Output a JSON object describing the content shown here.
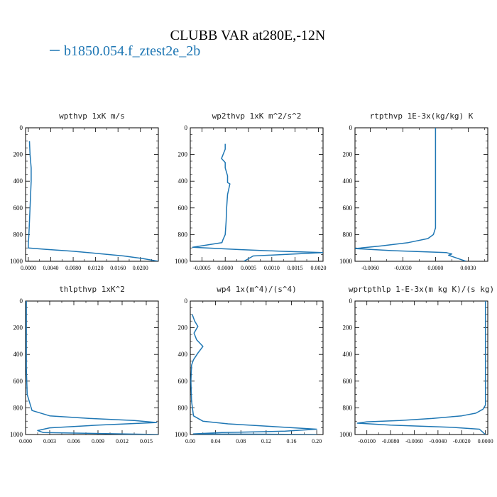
{
  "figure": {
    "title": "CLUBB VAR at280E,-12N",
    "legend_entry": "b1850.054.f_ztest2e_2b",
    "legend_color": "#1f77b4",
    "line_color": "#1f77b4"
  },
  "chart_data": [
    {
      "type": "line",
      "title": "wpthvp  1xK m/s",
      "xlim": [
        -0.0005,
        0.0232
      ],
      "ylim": [
        1000,
        0
      ],
      "xticks": [
        0.0,
        0.004,
        0.008,
        0.012,
        0.016,
        0.02
      ],
      "xtick_labels": [
        "0.0000",
        "0.0040",
        "0.0080",
        "0.0120",
        "0.0160",
        "0.0200"
      ],
      "yticks": [
        0,
        200,
        400,
        600,
        800,
        1000
      ],
      "ytick_labels": [
        "0",
        "200",
        "400",
        "600",
        "800",
        "1000"
      ],
      "series": [
        {
          "x": [
            0.0002,
            0.0003,
            0.0005,
            0.0005,
            0.0004,
            0.0003,
            0.0002,
            0.0001,
            0.0,
            0.0,
            0.003,
            0.008,
            0.012,
            0.017,
            0.0205,
            0.0232
          ],
          "y": [
            100,
            200,
            300,
            400,
            500,
            600,
            700,
            800,
            870,
            900,
            910,
            925,
            940,
            960,
            980,
            1000
          ]
        }
      ]
    },
    {
      "type": "line",
      "title": "wp2thvp  1xK m^2/s^2",
      "xlim": [
        -0.00075,
        0.0021
      ],
      "ylim": [
        1000,
        0
      ],
      "xticks": [
        -0.0005,
        0.0,
        0.0005,
        0.001,
        0.0015,
        0.002
      ],
      "xtick_labels": [
        "-0.0005",
        "0.0000",
        "0.0005",
        "0.0010",
        "0.0015",
        "0.0020"
      ],
      "yticks": [
        0,
        200,
        400,
        600,
        800,
        1000
      ],
      "ytick_labels": [
        "0",
        "200",
        "400",
        "600",
        "800",
        "1000"
      ],
      "series": [
        {
          "x": [
            0.0,
            0.0,
            -8e-05,
            0.0,
            0.0,
            5e-05,
            5e-05,
            0.0001,
            5e-05,
            3e-05,
            2e-05,
            0.0,
            -5e-05,
            -7e-05,
            -0.0007,
            0.0003,
            0.0012,
            0.0021,
            0.0006,
            0.0004
          ],
          "y": [
            120,
            160,
            230,
            260,
            300,
            360,
            410,
            420,
            500,
            600,
            700,
            800,
            840,
            860,
            895,
            912,
            925,
            935,
            960,
            1000
          ]
        }
      ]
    },
    {
      "type": "line",
      "title": "rtpthvp  1E-3x(kg/kg) K",
      "xlim": [
        -0.0074,
        0.0048
      ],
      "ylim": [
        1000,
        0
      ],
      "xticks": [
        -0.006,
        -0.003,
        0.0,
        0.003
      ],
      "xtick_labels": [
        "-0.0060",
        "-0.0030",
        "0.0000",
        "0.0030"
      ],
      "yticks": [
        0,
        200,
        400,
        600,
        800,
        1000
      ],
      "ytick_labels": [
        "0",
        "200",
        "400",
        "600",
        "800",
        "1000"
      ],
      "series": [
        {
          "x": [
            0.0,
            0.0,
            0.0,
            0.0,
            0.0,
            -0.0002,
            -0.0007,
            -0.0025,
            -0.005,
            -0.0074,
            -0.004,
            0.001,
            0.0015,
            0.0012,
            0.0028
          ],
          "y": [
            0,
            200,
            400,
            600,
            750,
            800,
            830,
            860,
            885,
            905,
            920,
            935,
            945,
            955,
            1000
          ]
        }
      ]
    },
    {
      "type": "line",
      "title": "thlpthvp  1xK^2",
      "xlim": [
        0.0,
        0.0165
      ],
      "ylim": [
        1000,
        0
      ],
      "xticks": [
        0.0,
        0.003,
        0.006,
        0.009,
        0.012,
        0.015
      ],
      "xtick_labels": [
        "0.000",
        "0.003",
        "0.006",
        "0.009",
        "0.012",
        "0.015"
      ],
      "yticks": [
        0,
        200,
        400,
        600,
        800,
        1000
      ],
      "ytick_labels": [
        "0",
        "200",
        "400",
        "600",
        "800",
        "1000"
      ],
      "series": [
        {
          "x": [
            0.0001,
            0.0001,
            0.0001,
            0.0001,
            0.0001,
            0.0001,
            0.0002,
            0.0008,
            0.003,
            0.008,
            0.0135,
            0.0163,
            0.009,
            0.003,
            0.0015,
            0.0022,
            0.0165
          ],
          "y": [
            0,
            100,
            200,
            300,
            400,
            500,
            700,
            820,
            860,
            880,
            895,
            910,
            930,
            950,
            970,
            985,
            1000
          ]
        }
      ]
    },
    {
      "type": "line",
      "title": "wp4  1x(m^4)/(s^4)",
      "xlim": [
        0.0,
        0.21
      ],
      "ylim": [
        1000,
        0
      ],
      "xticks": [
        0.0,
        0.04,
        0.08,
        0.12,
        0.16,
        0.2
      ],
      "xtick_labels": [
        "0.00",
        "0.04",
        "0.08",
        "0.12",
        "0.16",
        "0.20"
      ],
      "yticks": [
        0,
        200,
        400,
        600,
        800,
        1000
      ],
      "ytick_labels": [
        "0",
        "200",
        "400",
        "600",
        "800",
        "1000"
      ],
      "series": [
        {
          "x": [
            0.003,
            0.007,
            0.012,
            0.006,
            0.01,
            0.02,
            0.012,
            0.005,
            0.002,
            0.001,
            0.002,
            0.005,
            0.02,
            0.06,
            0.13,
            0.2,
            0.15,
            0.05,
            0.005,
            0.2
          ],
          "y": [
            100,
            150,
            190,
            240,
            290,
            340,
            390,
            440,
            480,
            600,
            750,
            860,
            900,
            920,
            940,
            960,
            975,
            985,
            995,
            1000
          ]
        }
      ]
    },
    {
      "type": "line",
      "title": "wprtpthlp  1-E-3x(m kg K)/(s kg)",
      "xlim": [
        -0.011,
        0.0002
      ],
      "ylim": [
        1000,
        0
      ],
      "xticks": [
        -0.01,
        -0.008,
        -0.006,
        -0.004,
        -0.002,
        0.0
      ],
      "xtick_labels": [
        "-0.0100",
        "-0.0080",
        "-0.0060",
        "-0.0040",
        "-0.0020",
        "0.0000"
      ],
      "yticks": [
        0,
        200,
        400,
        600,
        800,
        1000
      ],
      "ytick_labels": [
        "0",
        "200",
        "400",
        "600",
        "800",
        "1000"
      ],
      "series": [
        {
          "x": [
            0.0,
            0.0,
            0.0,
            -0.0002,
            -0.0008,
            -0.002,
            -0.0045,
            -0.0072,
            -0.01,
            -0.0108,
            -0.008,
            -0.003,
            -0.0005,
            0.0
          ],
          "y": [
            0,
            400,
            780,
            810,
            840,
            860,
            880,
            895,
            905,
            915,
            930,
            945,
            960,
            1000
          ]
        }
      ]
    }
  ]
}
